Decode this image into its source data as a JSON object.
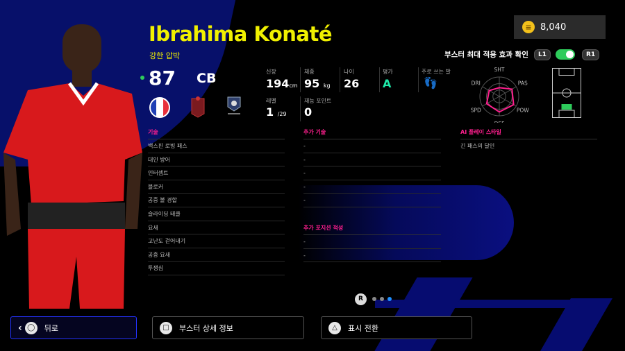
{
  "player": {
    "name": "Ibrahima Konaté",
    "style_tag": "강한 압박",
    "overall": "87",
    "position": "CB"
  },
  "stats": [
    {
      "label": "신장",
      "value": "194",
      "unit": "cm"
    },
    {
      "label": "체중",
      "value": "95",
      "unit": "kg"
    },
    {
      "label": "나이",
      "value": "26",
      "unit": ""
    },
    {
      "label": "평가",
      "value": "A",
      "unit": ""
    },
    {
      "label": "주로 쓰는 발",
      "value": "",
      "unit": ""
    }
  ],
  "level": {
    "label": "레벨",
    "value": "1",
    "max": "/29"
  },
  "skill_points": {
    "label": "재능 포인트",
    "value": "0"
  },
  "coins": "8,040",
  "booster": {
    "label": "부스터 최대 적용 효과 확인",
    "l1": "L1",
    "r1": "R1",
    "toggle_on": true
  },
  "radar": {
    "axes": [
      "SHT",
      "PAS",
      "POW",
      "DEF",
      "SPD",
      "DRI"
    ],
    "values": [
      0.45,
      0.75,
      0.85,
      0.8,
      0.75,
      0.6
    ],
    "color": "#ff1f8e"
  },
  "skills": {
    "title": "기술",
    "items": [
      "백스핀 로빙 패스",
      "대인 방어",
      "인터셉트",
      "블로커",
      "공중 볼 경합",
      "슬라이딩 태클",
      "요새",
      "고난도 걷어내기",
      "공중 요새",
      "투쟁심"
    ]
  },
  "extra_skills": {
    "title": "추가 기술",
    "items": [
      "-",
      "-",
      "-",
      "-",
      "-"
    ]
  },
  "extra_positions": {
    "title": "추가 포지션 적성",
    "items": [
      "-",
      "-"
    ]
  },
  "ai_style": {
    "title": "AI 플레이 스타일",
    "items": [
      "긴 패스의 달인"
    ]
  },
  "pagination": {
    "stick": "R",
    "pages": 3,
    "current": 3,
    "active_color": "#1e90ff"
  },
  "buttons": [
    {
      "label": "뒤로",
      "icon": "circle"
    },
    {
      "label": "부스터 상세 정보",
      "icon": "square"
    },
    {
      "label": "표시 전환",
      "icon": "triangle"
    }
  ]
}
